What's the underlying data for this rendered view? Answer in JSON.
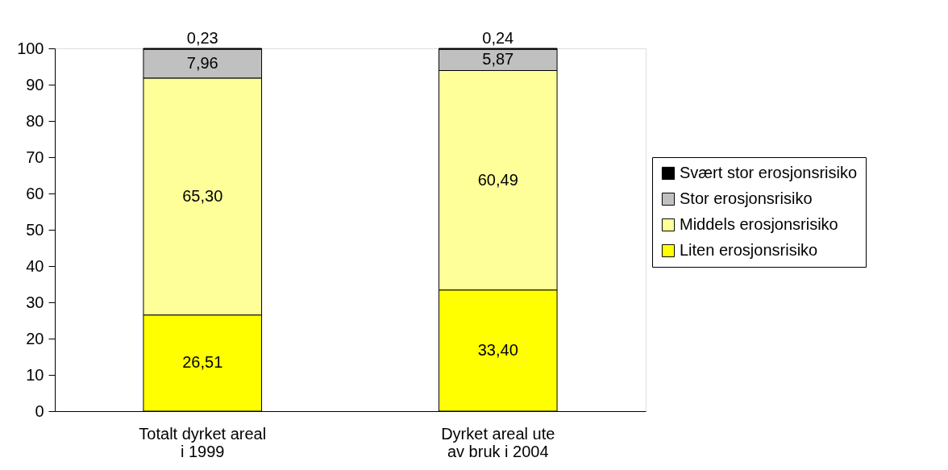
{
  "chart_data": {
    "type": "bar",
    "stacked": true,
    "categories": [
      "Totalt dyrket areal\ni 1999",
      "Dyrket areal ute\nav bruk i 2004"
    ],
    "series": [
      {
        "name": "Liten erosjonsrisiko",
        "color": "#ffff00",
        "values": [
          26.51,
          33.4
        ],
        "value_labels": [
          "26,51",
          "33,40"
        ]
      },
      {
        "name": "Middels erosjonsrisiko",
        "color": "#ffff99",
        "values": [
          65.3,
          60.49
        ],
        "value_labels": [
          "65,30",
          "60,49"
        ]
      },
      {
        "name": "Stor erosjonsrisiko",
        "color": "#c0c0c0",
        "values": [
          7.96,
          5.87
        ],
        "value_labels": [
          "7,96",
          "5,87"
        ]
      },
      {
        "name": "Svært stor erosjonsrisiko",
        "color": "#000000",
        "values": [
          0.23,
          0.24
        ],
        "value_labels": [
          "0,23",
          "0,24"
        ]
      }
    ],
    "ylim": [
      0,
      100
    ],
    "yticks": [
      0,
      10,
      20,
      30,
      40,
      50,
      60,
      70,
      80,
      90,
      100
    ],
    "grid": false,
    "legend": "right"
  }
}
